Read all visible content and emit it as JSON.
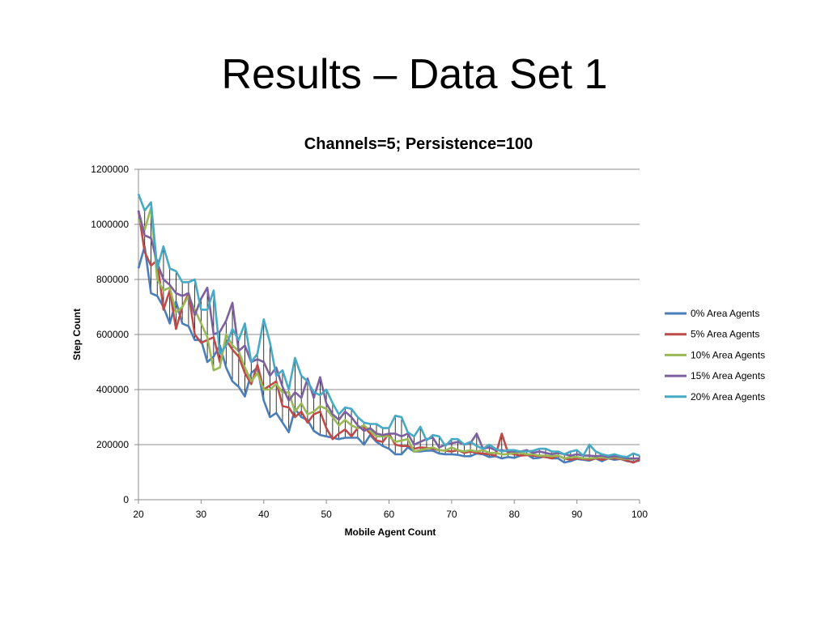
{
  "slide": {
    "title": "Results – Data Set 1"
  },
  "chart_data": {
    "type": "line",
    "title": "Channels=5;  Persistence=100",
    "xlabel": "Mobile Agent Count",
    "ylabel": "Step Count",
    "xlim": [
      20,
      100
    ],
    "ylim": [
      0,
      1200000
    ],
    "xticks": [
      20,
      30,
      40,
      50,
      60,
      70,
      80,
      90,
      100
    ],
    "yticks": [
      0,
      200000,
      400000,
      600000,
      800000,
      1000000,
      1200000
    ],
    "xtick_labels": [
      "20",
      "30",
      "40",
      "50",
      "60",
      "70",
      "80",
      "90",
      "100"
    ],
    "ytick_labels": [
      "0",
      "200000",
      "400000",
      "600000",
      "800000",
      "1000000",
      "1200000"
    ],
    "grid": "horizontal",
    "legend_position": "right",
    "hi_lo_lines": true,
    "x": [
      20,
      21,
      22,
      23,
      24,
      25,
      26,
      27,
      28,
      29,
      30,
      31,
      32,
      33,
      34,
      35,
      36,
      37,
      38,
      39,
      40,
      41,
      42,
      43,
      44,
      45,
      46,
      47,
      48,
      49,
      50,
      51,
      52,
      53,
      54,
      55,
      56,
      57,
      58,
      59,
      60,
      61,
      62,
      63,
      64,
      65,
      66,
      67,
      68,
      69,
      70,
      71,
      72,
      73,
      74,
      75,
      76,
      77,
      78,
      79,
      80,
      81,
      82,
      83,
      84,
      85,
      86,
      87,
      88,
      89,
      90,
      91,
      92,
      93,
      94,
      95,
      96,
      97,
      98,
      99,
      100
    ],
    "series": [
      {
        "name": "0% Area Agents",
        "color": "#4a7ebb",
        "values": [
          840000,
          920000,
          750000,
          740000,
          700000,
          640000,
          720000,
          640000,
          630000,
          580000,
          580000,
          500000,
          520000,
          560000,
          480000,
          430000,
          410000,
          375000,
          460000,
          480000,
          360000,
          300000,
          315000,
          280000,
          245000,
          330000,
          300000,
          290000,
          250000,
          235000,
          230000,
          225000,
          220000,
          225000,
          225000,
          225000,
          200000,
          235000,
          210000,
          195000,
          185000,
          165000,
          165000,
          190000,
          175000,
          175000,
          178000,
          178000,
          168000,
          165000,
          165000,
          163000,
          158000,
          158000,
          168000,
          165000,
          155000,
          158000,
          150000,
          155000,
          152000,
          160000,
          165000,
          150000,
          152000,
          158000,
          150000,
          150000,
          135000,
          140000,
          148000,
          145000,
          142000,
          150000,
          140000,
          150000,
          145000,
          148000,
          140000,
          138000,
          142000
        ]
      },
      {
        "name": "5% Area Agents",
        "color": "#be4b48",
        "values": [
          1050000,
          900000,
          850000,
          870000,
          690000,
          760000,
          620000,
          700000,
          750000,
          600000,
          570000,
          580000,
          590000,
          500000,
          580000,
          545000,
          520000,
          460000,
          420000,
          490000,
          400000,
          415000,
          430000,
          340000,
          335000,
          300000,
          320000,
          280000,
          310000,
          320000,
          260000,
          220000,
          240000,
          255000,
          230000,
          260000,
          265000,
          240000,
          215000,
          210000,
          240000,
          200000,
          195000,
          195000,
          185000,
          190000,
          188000,
          185000,
          180000,
          178000,
          175000,
          180000,
          170000,
          175000,
          170000,
          168000,
          165000,
          160000,
          240000,
          170000,
          165000,
          160000,
          162000,
          160000,
          158000,
          155000,
          150000,
          160000,
          150000,
          145000,
          150000,
          148000,
          145000,
          150000,
          145000,
          150000,
          150000,
          148000,
          142000,
          135000,
          145000
        ]
      },
      {
        "name": "10% Area Agents",
        "color": "#98b954",
        "values": [
          1020000,
          980000,
          1060000,
          800000,
          760000,
          770000,
          680000,
          700000,
          740000,
          690000,
          640000,
          590000,
          470000,
          480000,
          600000,
          560000,
          540000,
          480000,
          430000,
          460000,
          400000,
          400000,
          420000,
          390000,
          390000,
          320000,
          350000,
          310000,
          320000,
          340000,
          330000,
          300000,
          270000,
          290000,
          270000,
          260000,
          270000,
          250000,
          230000,
          230000,
          230000,
          210000,
          215000,
          220000,
          175000,
          180000,
          185000,
          190000,
          180000,
          178000,
          190000,
          180000,
          175000,
          180000,
          175000,
          180000,
          170000,
          170000,
          165000,
          165000,
          170000,
          170000,
          165000,
          165000,
          160000,
          160000,
          158000,
          160000,
          150000,
          155000,
          155000,
          150000,
          150000,
          152000,
          155000,
          150000,
          155000,
          150000,
          148000,
          148000,
          150000
        ]
      },
      {
        "name": "15% Area Agents",
        "color": "#7d60a0",
        "values": [
          1050000,
          960000,
          950000,
          860000,
          800000,
          780000,
          750000,
          740000,
          750000,
          670000,
          730000,
          770000,
          600000,
          610000,
          650000,
          715000,
          540000,
          560000,
          500000,
          510000,
          500000,
          450000,
          480000,
          410000,
          360000,
          390000,
          370000,
          440000,
          370000,
          445000,
          350000,
          310000,
          290000,
          320000,
          300000,
          270000,
          250000,
          260000,
          240000,
          235000,
          240000,
          240000,
          230000,
          240000,
          200000,
          210000,
          220000,
          225000,
          190000,
          200000,
          205000,
          210000,
          200000,
          205000,
          240000,
          185000,
          190000,
          180000,
          180000,
          175000,
          175000,
          175000,
          180000,
          170000,
          175000,
          170000,
          165000,
          170000,
          165000,
          160000,
          165000,
          160000,
          160000,
          158000,
          160000,
          155000,
          158000,
          155000,
          150000,
          150000,
          150000
        ]
      },
      {
        "name": "20% Area Agents",
        "color": "#46aac5",
        "values": [
          1110000,
          1050000,
          1080000,
          840000,
          920000,
          840000,
          830000,
          790000,
          790000,
          800000,
          690000,
          690000,
          760000,
          530000,
          560000,
          620000,
          580000,
          640000,
          500000,
          530000,
          655000,
          570000,
          450000,
          470000,
          400000,
          515000,
          450000,
          430000,
          390000,
          380000,
          400000,
          350000,
          310000,
          335000,
          330000,
          300000,
          280000,
          275000,
          275000,
          260000,
          260000,
          305000,
          300000,
          245000,
          230000,
          265000,
          215000,
          235000,
          230000,
          195000,
          220000,
          220000,
          200000,
          210000,
          195000,
          185000,
          200000,
          185000,
          175000,
          180000,
          180000,
          175000,
          175000,
          178000,
          185000,
          185000,
          175000,
          175000,
          165000,
          175000,
          180000,
          160000,
          200000,
          175000,
          165000,
          160000,
          165000,
          158000,
          155000,
          168000,
          160000
        ]
      }
    ]
  }
}
